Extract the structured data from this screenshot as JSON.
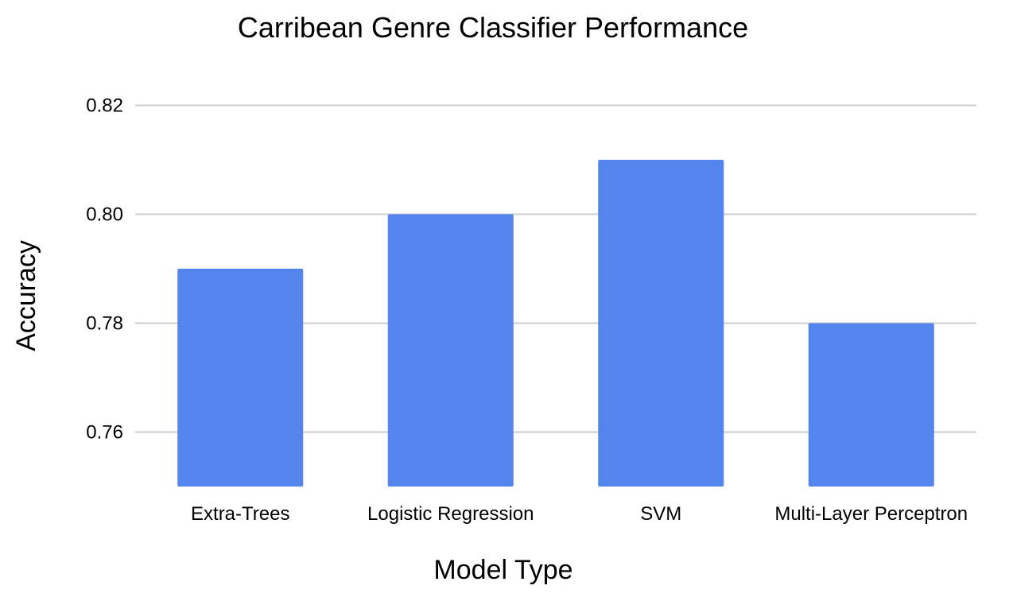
{
  "chart_data": {
    "type": "bar",
    "title": "Carribean Genre Classifier Performance",
    "xlabel": "Model Type",
    "ylabel": "Accuracy",
    "categories": [
      "Extra-Trees",
      "Logistic Regression",
      "SVM",
      "Multi-Layer Perceptron"
    ],
    "values": [
      0.79,
      0.8,
      0.81,
      0.78
    ],
    "ylim": [
      0.75,
      0.82
    ],
    "yticks": [
      "0.76",
      "0.78",
      "0.80",
      "0.82"
    ],
    "grid": true,
    "bar_color": "#5385ec",
    "grid_color": "#cccccc"
  }
}
